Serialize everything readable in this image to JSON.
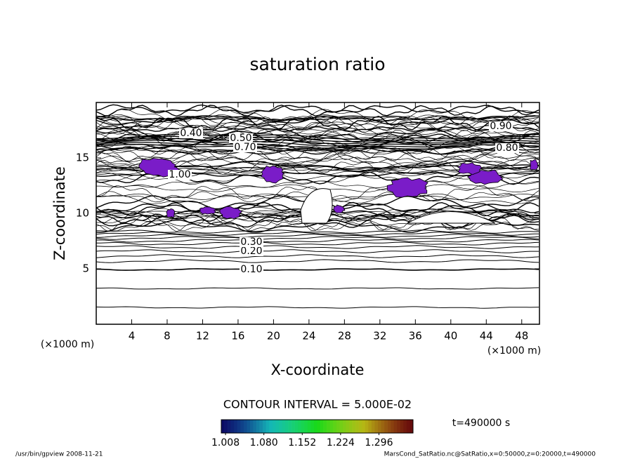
{
  "chart_data": {
    "type": "contour",
    "title": "saturation ratio",
    "x_label": "X-coordinate",
    "y_label": "Z-coordinate",
    "x_unit": "(×1000 m)",
    "y_unit": "(×1000 m)",
    "xlim": [
      0,
      50
    ],
    "ylim": [
      0,
      20
    ],
    "xticks": [
      4,
      8,
      12,
      16,
      20,
      24,
      28,
      32,
      36,
      40,
      44,
      48
    ],
    "yticks": [
      5,
      10,
      15
    ],
    "contour_interval_label": "CONTOUR INTERVAL = 5.000E-02",
    "contour_labels": [
      {
        "value": 0.1,
        "label": "0.10"
      },
      {
        "value": 0.2,
        "label": "0.20"
      },
      {
        "value": 0.3,
        "label": "0.30"
      },
      {
        "value": 0.4,
        "label": "0.40"
      },
      {
        "value": 0.5,
        "label": "0.50"
      },
      {
        "value": 0.7,
        "label": "0.70"
      },
      {
        "value": 0.8,
        "label": "0.80"
      },
      {
        "value": 0.9,
        "label": "0.90"
      },
      {
        "value": 1,
        "label": "1.00"
      }
    ],
    "shade_color": "#7a1cc8",
    "colorbar": {
      "lim": [
        1.0,
        1.36
      ],
      "ticks": [
        1.008,
        {
          "value": 1.08,
          "label": "1.080"
        },
        1.152,
        1.224,
        1.296
      ]
    },
    "time_label": "t=490000 s",
    "footer_left": "/usr/bin/gpview  2008-11-21",
    "footer_right": "MarsCond_SatRatio.nc@SatRatio,x=0:50000,z=0:20000,t=490000"
  }
}
